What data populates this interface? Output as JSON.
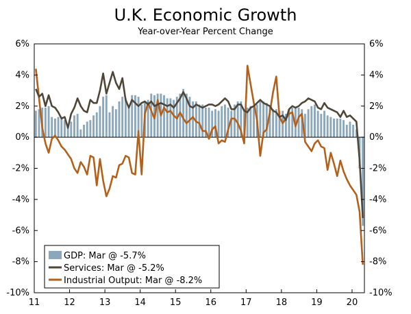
{
  "chart_data": {
    "type": "bar+line",
    "title": "U.K. Economic Growth",
    "subtitle": "Year-over-Year Percent Change",
    "ylim": [
      -10,
      6
    ],
    "y_ticks": [
      6,
      4,
      2,
      0,
      -2,
      -4,
      -6,
      -8,
      -10
    ],
    "y_tick_labels": [
      "6%",
      "4%",
      "2%",
      "0%",
      "-2%",
      "-4%",
      "-6%",
      "-8%",
      "-10%"
    ],
    "x_range": [
      2011.0,
      2020.35
    ],
    "x_ticks": [
      2011,
      2012,
      2013,
      2014,
      2015,
      2016,
      2017,
      2018,
      2019,
      2020
    ],
    "x_tick_labels": [
      "11",
      "12",
      "13",
      "14",
      "15",
      "16",
      "17",
      "18",
      "19",
      "20"
    ],
    "colors": {
      "gdp": "#8ba7bb",
      "services": "#4f4638",
      "industrial": "#b4601a",
      "axis": "#000000"
    },
    "legend": [
      {
        "key": "gdp",
        "label": "GDP: Mar @ -5.7%"
      },
      {
        "key": "services",
        "label": "Services: Mar @ -5.2%"
      },
      {
        "key": "industrial",
        "label": "Industrial Output: Mar @ -8.2%"
      }
    ],
    "series": [
      {
        "name": "GDP",
        "type": "bar",
        "values": [
          1.7,
          1.8,
          1.9,
          1.9,
          2.0,
          1.3,
          1.2,
          1.3,
          1.3,
          1.1,
          0.8,
          1.0,
          1.4,
          1.5,
          0.5,
          0.8,
          1.0,
          1.1,
          1.4,
          1.6,
          2.0,
          2.6,
          2.7,
          1.6,
          2.0,
          1.8,
          2.3,
          2.6,
          2.5,
          2.0,
          2.7,
          2.7,
          2.6,
          2.1,
          2.3,
          2.4,
          2.8,
          2.7,
          2.8,
          2.8,
          2.7,
          2.5,
          2.5,
          2.4,
          2.6,
          2.8,
          3.1,
          2.8,
          2.6,
          2.3,
          2.3,
          2.1,
          2.1,
          1.9,
          1.9,
          1.7,
          1.8,
          1.7,
          2.0,
          2.1,
          1.9,
          1.7,
          2.1,
          2.3,
          2.3,
          1.8,
          1.9,
          2.0,
          2.0,
          2.1,
          2.3,
          2.3,
          2.2,
          2.0,
          1.8,
          1.8,
          1.7,
          1.7,
          1.5,
          1.8,
          1.9,
          1.9,
          1.9,
          1.8,
          1.5,
          1.8,
          2.0,
          2.1,
          1.7,
          1.5,
          1.7,
          1.4,
          1.3,
          1.2,
          1.2,
          1.2,
          1.1,
          0.8,
          1.0,
          0.8,
          0.5,
          -2.0,
          -5.7
        ]
      },
      {
        "name": "Services",
        "type": "line",
        "values": [
          3.1,
          2.6,
          2.8,
          2.0,
          2.7,
          2.0,
          1.9,
          1.6,
          1.2,
          1.3,
          0.6,
          1.5,
          1.9,
          2.5,
          2.0,
          1.7,
          1.6,
          2.4,
          2.2,
          2.2,
          3.0,
          4.1,
          2.8,
          3.5,
          4.2,
          3.5,
          3.1,
          3.8,
          2.4,
          1.9,
          2.4,
          2.2,
          2.0,
          2.2,
          2.3,
          2.1,
          2.3,
          2.0,
          2.1,
          2.2,
          2.1,
          2.0,
          2.1,
          1.9,
          2.2,
          2.5,
          2.9,
          2.5,
          2.0,
          1.9,
          2.1,
          2.0,
          1.9,
          2.0,
          2.1,
          2.1,
          2.0,
          2.1,
          2.3,
          2.5,
          2.3,
          1.8,
          1.8,
          2.1,
          2.1,
          1.7,
          1.6,
          1.9,
          2.0,
          2.2,
          2.4,
          2.2,
          2.1,
          2.0,
          1.7,
          1.6,
          1.3,
          1.4,
          1.1,
          1.8,
          2.0,
          1.9,
          2.0,
          2.2,
          2.3,
          2.5,
          2.4,
          2.3,
          1.9,
          1.8,
          2.2,
          1.9,
          1.8,
          1.7,
          1.6,
          1.3,
          1.7,
          1.3,
          1.4,
          1.2,
          1.0,
          -1.5,
          -5.2
        ]
      },
      {
        "name": "Industrial Output",
        "type": "line",
        "values": [
          4.4,
          2.5,
          0.6,
          -0.4,
          -1.0,
          -0.1,
          0.1,
          -0.2,
          -0.6,
          -0.8,
          -1.1,
          -1.4,
          -2.0,
          -2.3,
          -1.6,
          -1.9,
          -2.4,
          -1.2,
          -1.3,
          -3.1,
          -1.4,
          -2.8,
          -3.8,
          -3.3,
          -2.5,
          -2.6,
          -1.8,
          -1.7,
          -1.2,
          -1.3,
          -2.3,
          -2.4,
          0.4,
          -2.4,
          1.5,
          2.2,
          1.7,
          1.2,
          2.4,
          1.4,
          1.9,
          1.6,
          1.7,
          1.4,
          1.2,
          1.6,
          1.2,
          0.9,
          1.1,
          1.3,
          1.0,
          0.9,
          0.4,
          0.4,
          -0.1,
          0.5,
          0.7,
          -0.4,
          -0.2,
          -0.3,
          0.5,
          1.2,
          1.2,
          0.9,
          0.4,
          -0.4,
          4.6,
          3.4,
          2.2,
          1.1,
          -1.2,
          0.3,
          0.5,
          1.6,
          2.9,
          3.9,
          1.3,
          0.9,
          1.2,
          1.5,
          1.6,
          0.7,
          1.3,
          1.5,
          -0.3,
          -0.6,
          -0.9,
          -0.4,
          -0.2,
          -0.6,
          -0.7,
          -2.1,
          -1.0,
          -1.7,
          -2.5,
          -1.5,
          -2.2,
          -2.7,
          -3.1,
          -3.4,
          -3.7,
          -4.8,
          -8.2
        ]
      }
    ]
  }
}
